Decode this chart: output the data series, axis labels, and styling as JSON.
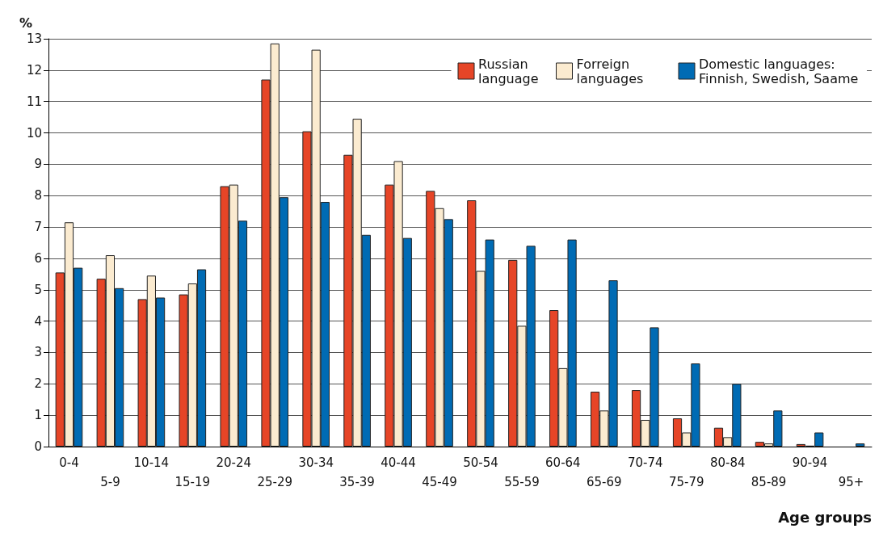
{
  "chart_data": {
    "type": "bar",
    "ylabel": "%",
    "xlabel": "Age groups",
    "categories": [
      "0-4",
      "5-9",
      "10-14",
      "15-19",
      "20-24",
      "25-29",
      "30-34",
      "35-39",
      "40-44",
      "45-49",
      "50-54",
      "55-59",
      "60-64",
      "65-69",
      "70-74",
      "75-79",
      "80-84",
      "85-89",
      "90-94",
      "95+"
    ],
    "series": [
      {
        "name": "Russian language",
        "color": "#e64527",
        "values": [
          5.55,
          5.35,
          4.7,
          4.85,
          8.3,
          11.7,
          10.05,
          9.3,
          8.35,
          8.15,
          7.85,
          5.95,
          4.35,
          1.75,
          1.8,
          0.9,
          0.6,
          0.15,
          0.08,
          0.0
        ]
      },
      {
        "name": "Forreign languages",
        "color": "#fbebd0",
        "values": [
          7.15,
          6.1,
          5.45,
          5.2,
          8.35,
          12.85,
          12.65,
          10.45,
          9.1,
          7.6,
          5.6,
          3.85,
          2.5,
          1.15,
          0.85,
          0.45,
          0.3,
          0.1,
          0.03,
          0.0
        ]
      },
      {
        "name": "Domestic languages: Finnish, Swedish, Saame",
        "color": "#006bb4",
        "values": [
          5.7,
          5.05,
          4.75,
          5.65,
          7.2,
          7.95,
          7.8,
          6.75,
          6.65,
          7.25,
          6.6,
          6.4,
          6.6,
          5.3,
          3.8,
          2.65,
          2.0,
          1.15,
          0.45,
          0.1
        ]
      }
    ],
    "ylim": [
      0,
      13
    ],
    "yticks": [
      0,
      1,
      2,
      3,
      4,
      5,
      6,
      7,
      8,
      9,
      10,
      11,
      12,
      13
    ],
    "grid": "y",
    "legend": "top right"
  }
}
